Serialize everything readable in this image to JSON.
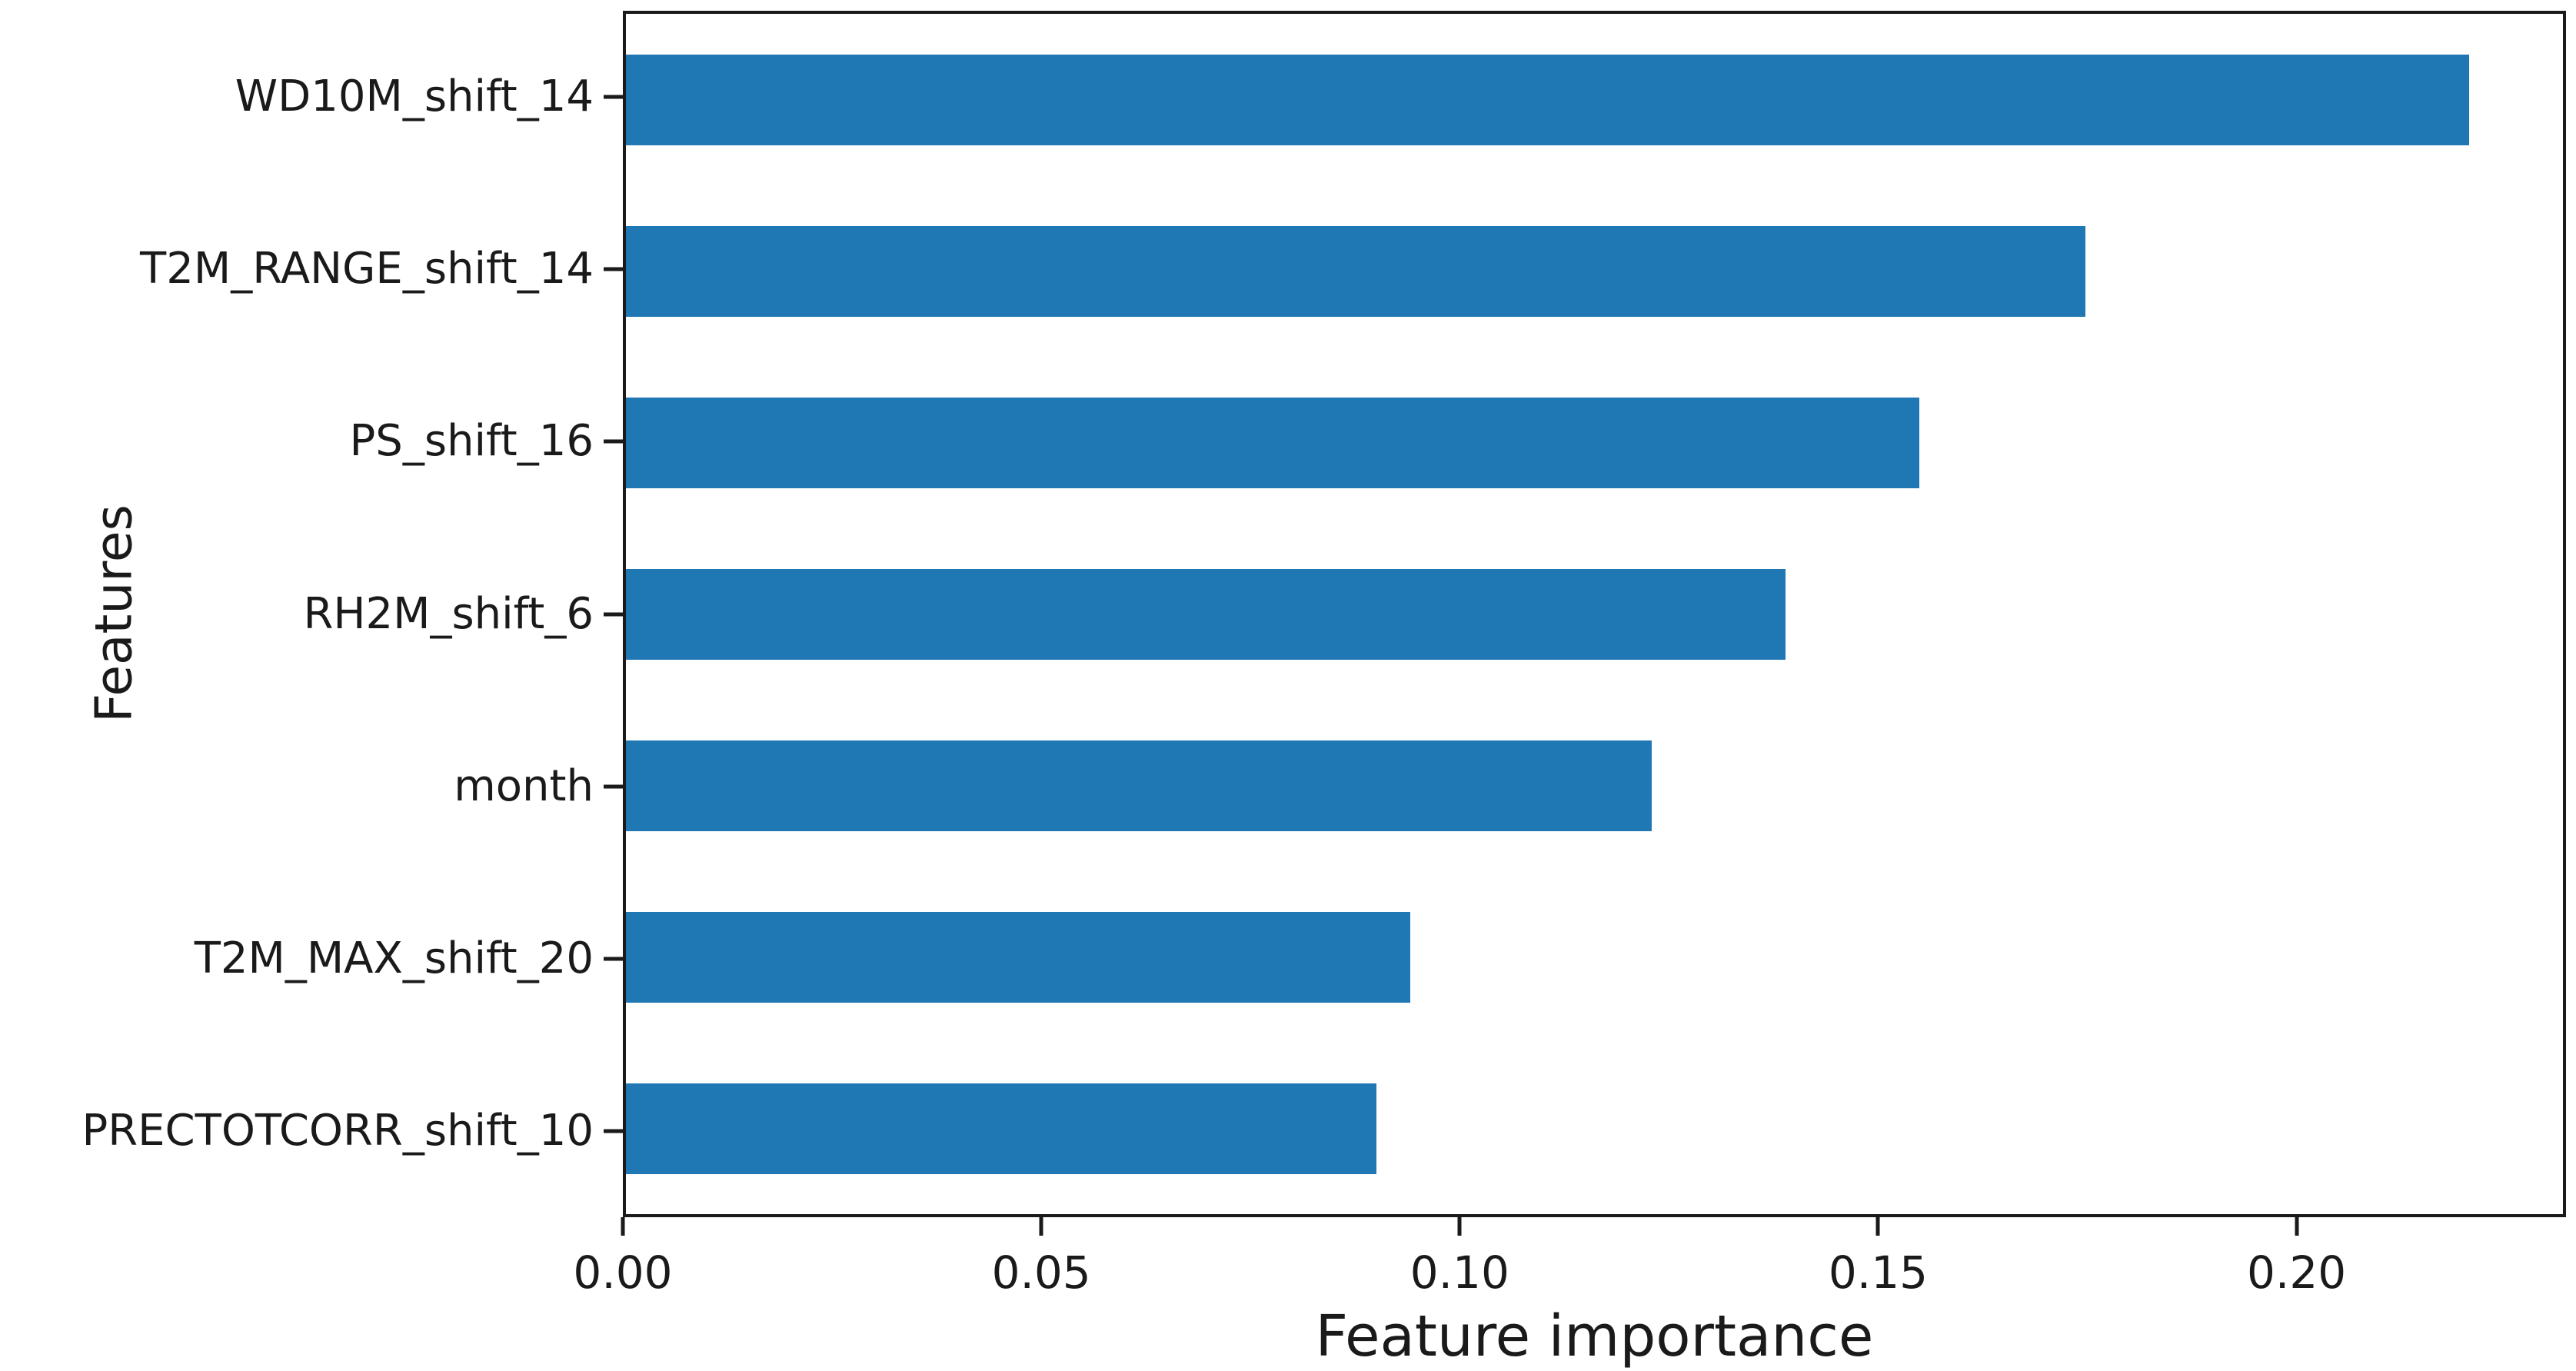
{
  "chart_data": {
    "type": "bar",
    "orientation": "horizontal",
    "title": "",
    "xlabel": "Feature importance",
    "ylabel": "Features",
    "categories": [
      "WD10M_shift_14",
      "T2M_RANGE_shift_14",
      "PS_shift_16",
      "RH2M_shift_6",
      "month",
      "T2M_MAX_shift_20",
      "PRECTOTCORR_shift_10"
    ],
    "values": [
      0.221,
      0.175,
      0.155,
      0.139,
      0.123,
      0.094,
      0.09
    ],
    "xlim": [
      0,
      0.2322
    ],
    "xticks": [
      0.0,
      0.05,
      0.1,
      0.15,
      0.2
    ],
    "xtick_labels": [
      "0.00",
      "0.05",
      "0.10",
      "0.15",
      "0.20"
    ],
    "grid": false,
    "legend": null,
    "bar_color": "#1f77b4",
    "axis_color": "#1a1a1a"
  }
}
